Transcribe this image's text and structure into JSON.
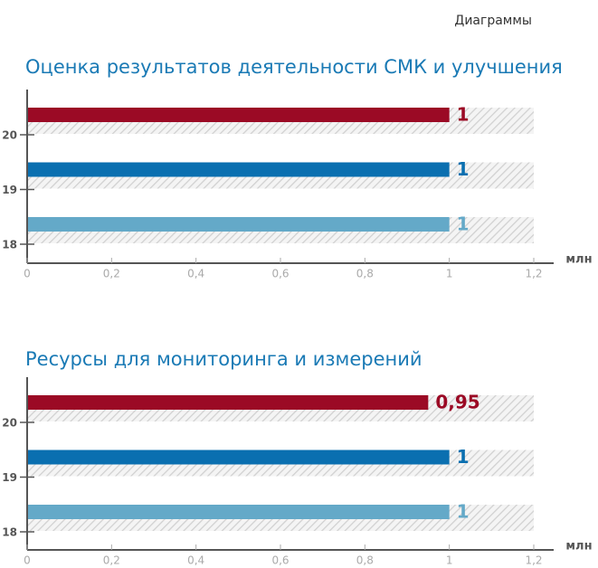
{
  "header": {
    "title": "Диаграммы"
  },
  "chart_data": [
    {
      "type": "bar",
      "orientation": "horizontal",
      "title": "Оценка результатов деятельности СМК и улучшения",
      "categories": [
        "20",
        "19",
        "18"
      ],
      "values": [
        1,
        1,
        1
      ],
      "colors": [
        "#9b0a25",
        "#0a6fb0",
        "#64a9c8"
      ],
      "xlim": [
        0,
        1.2
      ],
      "xticks": [
        0,
        {
          "value": 0.2,
          "label": "0,2"
        },
        {
          "value": 0.4,
          "label": "0,4"
        },
        {
          "value": 0.6,
          "label": "0,6"
        },
        {
          "value": 0.8,
          "label": "0,8"
        },
        1,
        {
          "value": 1.2,
          "label": "1,2"
        }
      ],
      "x_unit": "млн"
    },
    {
      "type": "bar",
      "orientation": "horizontal",
      "title": "Ресурсы для мониторинга и измерений",
      "categories": [
        "20",
        "19",
        "18"
      ],
      "values": [
        0.95,
        1,
        1
      ],
      "value_labels": [
        "0,95",
        "1",
        "1"
      ],
      "colors": [
        "#9b0a25",
        "#0a6fb0",
        "#64a9c8"
      ],
      "xlim": [
        0,
        1.2
      ],
      "xticks": [
        0,
        {
          "value": 0.2,
          "label": "0,2"
        },
        {
          "value": 0.4,
          "label": "0,4"
        },
        {
          "value": 0.6,
          "label": "0,6"
        },
        {
          "value": 0.8,
          "label": "0,8"
        },
        1,
        {
          "value": 1.2,
          "label": "1,2"
        }
      ],
      "x_unit": "млн"
    }
  ]
}
